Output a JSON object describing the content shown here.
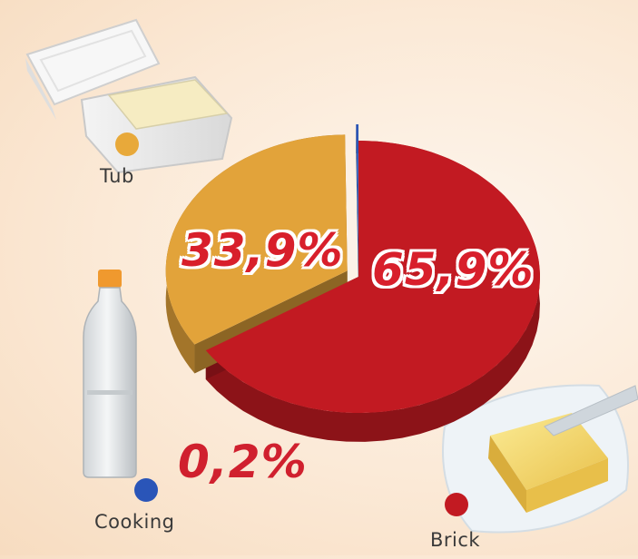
{
  "chart_data": {
    "type": "pie",
    "categories": [
      "Brick",
      "Tub",
      "Cooking"
    ],
    "values": [
      65.9,
      33.9,
      0.2
    ],
    "value_labels": [
      "65,9%",
      "33,9%",
      "0,2%"
    ],
    "colors": [
      "#c21a22",
      "#e2a33a",
      "#2a55b8"
    ],
    "style": "3d-exploded"
  },
  "icons": [
    "margarine-tub-icon",
    "oil-bottle-icon",
    "butter-brick-icon"
  ]
}
